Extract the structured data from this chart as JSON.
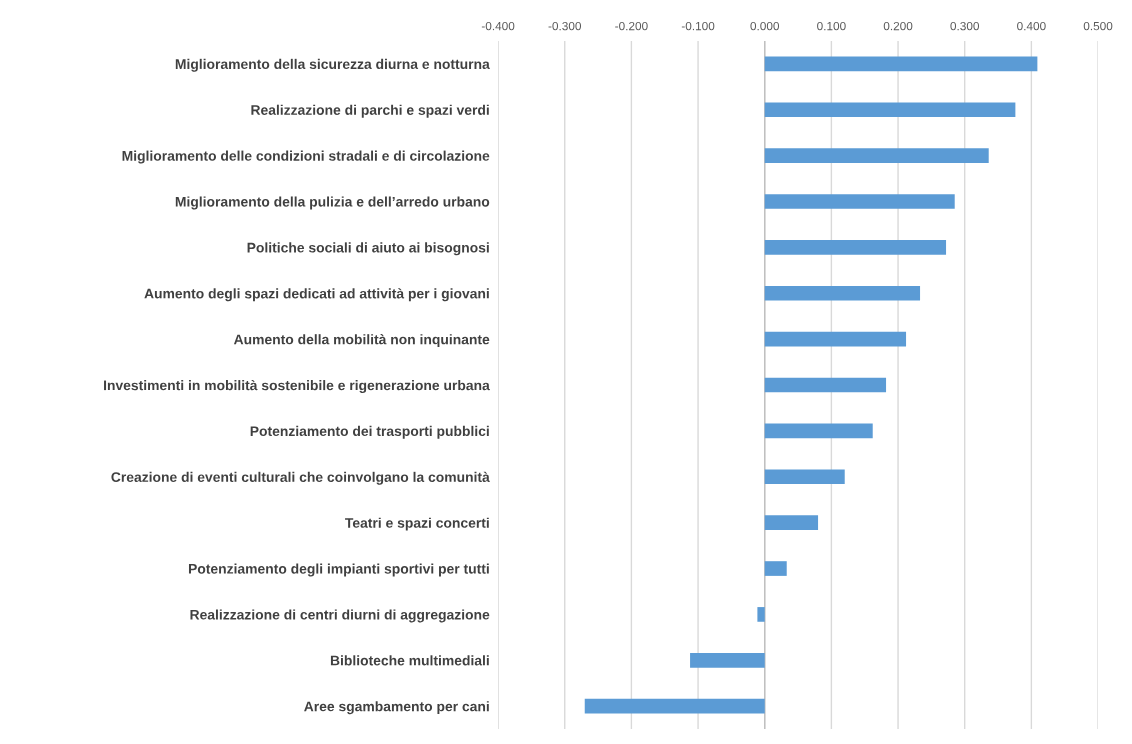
{
  "chart_data": {
    "type": "bar",
    "orientation": "horizontal",
    "categories": [
      "Miglioramento della sicurezza diurna e notturna",
      "Realizzazione di parchi e spazi verdi",
      "Miglioramento delle condizioni stradali e di circolazione",
      "Miglioramento della pulizia e dell’arredo urbano",
      "Politiche sociali di aiuto ai bisognosi",
      "Aumento degli spazi dedicati ad attività per i giovani",
      "Aumento della mobilità non inquinante",
      "Investimenti in mobilità sostenibile e rigenerazione urbana",
      "Potenziamento dei trasporti pubblici",
      "Creazione di eventi culturali che coinvolgano la comunità",
      "Teatri e spazi concerti",
      "Potenziamento degli impianti sportivi per tutti",
      "Realizzazione di centri diurni di aggregazione",
      "Biblioteche multimediali",
      "Aree sgambamento per cani"
    ],
    "values": [
      0.409,
      0.376,
      0.336,
      0.285,
      0.272,
      0.233,
      0.212,
      0.182,
      0.162,
      0.12,
      0.08,
      0.033,
      -0.011,
      -0.112,
      -0.27
    ],
    "color": "#5b9bd5",
    "xlim": [
      -0.4,
      0.5
    ],
    "xticks": [
      {
        "value": -0.4,
        "label": "-0.400"
      },
      {
        "value": -0.3,
        "label": "-0.300"
      },
      {
        "value": -0.2,
        "label": "-0.200"
      },
      {
        "value": -0.1,
        "label": "-0.100"
      },
      {
        "value": 0,
        "label": "0.000"
      },
      {
        "value": 0.1,
        "label": "0.100"
      },
      {
        "value": 0.2,
        "label": "0.200"
      },
      {
        "value": 0.3,
        "label": "0.300"
      },
      {
        "value": 0.4,
        "label": "0.400"
      },
      {
        "value": 0.5,
        "label": "0.500"
      }
    ],
    "grid": "x"
  }
}
